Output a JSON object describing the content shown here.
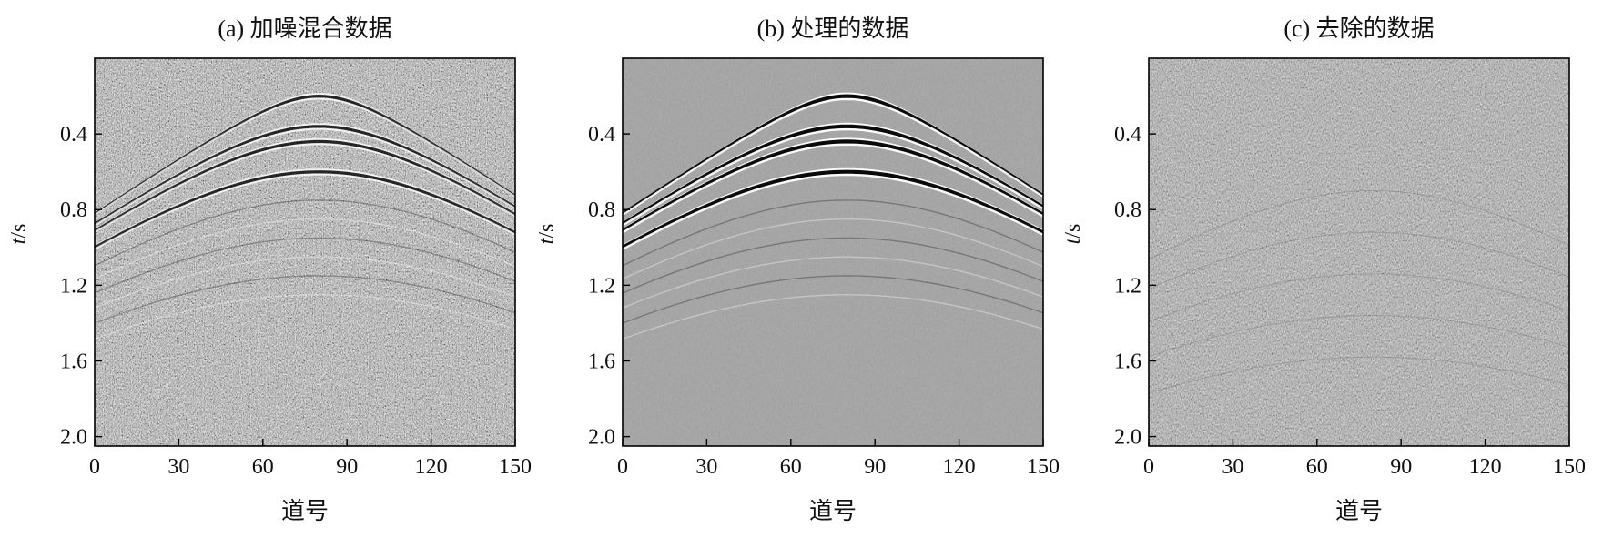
{
  "figure": {
    "panels": [
      {
        "title": "(a) 加噪混合数据",
        "xlabel": "道号",
        "ylabel_italic": "t",
        "ylabel_rest": "/s",
        "xticks": [
          "0",
          "30",
          "60",
          "90",
          "120",
          "150"
        ],
        "yticks": [
          "0.4",
          "0.8",
          "1.2",
          "1.6",
          "2.0"
        ]
      },
      {
        "title": "(b) 处理的数据",
        "xlabel": "道号",
        "ylabel_italic": "t",
        "ylabel_rest": "/s",
        "xticks": [
          "0",
          "30",
          "60",
          "90",
          "120",
          "150"
        ],
        "yticks": [
          "0.4",
          "0.8",
          "1.2",
          "1.6",
          "2.0"
        ]
      },
      {
        "title": "(c) 去除的数据",
        "xlabel": "道号",
        "ylabel_italic": "t",
        "ylabel_rest": "/s",
        "xticks": [
          "0",
          "30",
          "60",
          "90",
          "120",
          "150"
        ],
        "yticks": [
          "0.4",
          "0.8",
          "1.2",
          "1.6",
          "2.0"
        ]
      }
    ]
  },
  "chart_data": [
    {
      "type": "heatmap",
      "title": "(a) 加噪混合数据",
      "xlabel": "道号",
      "ylabel": "t/s",
      "xlim": [
        0,
        150
      ],
      "ylim": [
        2.05,
        0.0
      ],
      "xticks": [
        0,
        30,
        60,
        90,
        120,
        150
      ],
      "yticks": [
        0.4,
        0.8,
        1.2,
        1.6,
        2.0
      ],
      "colormap": "gray",
      "noise_level": "high",
      "events": [
        {
          "apex_trace": 80,
          "apex_time": 0.2,
          "velocity_sweep": "hyperbolic"
        },
        {
          "apex_trace": 80,
          "apex_time": 0.36,
          "velocity_sweep": "hyperbolic"
        },
        {
          "apex_trace": 80,
          "apex_time": 0.44,
          "velocity_sweep": "hyperbolic"
        },
        {
          "apex_trace": 80,
          "apex_time": 0.6,
          "velocity_sweep": "hyperbolic"
        }
      ]
    },
    {
      "type": "heatmap",
      "title": "(b) 处理的数据",
      "xlabel": "道号",
      "ylabel": "t/s",
      "xlim": [
        0,
        150
      ],
      "ylim": [
        2.05,
        0.0
      ],
      "xticks": [
        0,
        30,
        60,
        90,
        120,
        150
      ],
      "yticks": [
        0.4,
        0.8,
        1.2,
        1.6,
        2.0
      ],
      "colormap": "gray",
      "noise_level": "low",
      "events": [
        {
          "apex_trace": 80,
          "apex_time": 0.2,
          "velocity_sweep": "hyperbolic"
        },
        {
          "apex_trace": 80,
          "apex_time": 0.36,
          "velocity_sweep": "hyperbolic"
        },
        {
          "apex_trace": 80,
          "apex_time": 0.44,
          "velocity_sweep": "hyperbolic"
        },
        {
          "apex_trace": 80,
          "apex_time": 0.6,
          "velocity_sweep": "hyperbolic"
        }
      ]
    },
    {
      "type": "heatmap",
      "title": "(c) 去除的数据",
      "xlabel": "道号",
      "ylabel": "t/s",
      "xlim": [
        0,
        150
      ],
      "ylim": [
        2.05,
        0.0
      ],
      "xticks": [
        0,
        30,
        60,
        90,
        120,
        150
      ],
      "yticks": [
        0.4,
        0.8,
        1.2,
        1.6,
        2.0
      ],
      "colormap": "gray",
      "noise_level": "medium",
      "events": []
    }
  ]
}
